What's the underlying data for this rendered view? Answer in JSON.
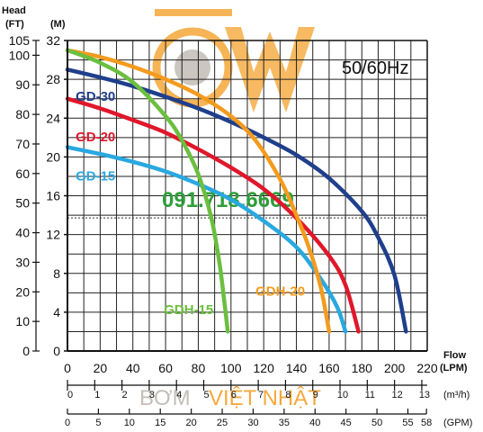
{
  "chart_data": {
    "type": "line",
    "frequency_label": "50/60Hz",
    "phone_watermark": "091.718.6669",
    "brand_watermark": [
      "BƠM",
      "VIỆT NHẬT"
    ],
    "x_axis": {
      "title_lines": [
        "Flow",
        "(LPM)"
      ],
      "unit": "LPM",
      "range": [
        0,
        220
      ],
      "ticks": [
        0,
        20,
        40,
        60,
        80,
        100,
        120,
        140,
        160,
        180,
        200,
        220
      ]
    },
    "x_axis_m3h": {
      "unit_label": "(m³/h)",
      "ticks": [
        0,
        1,
        2,
        3,
        4,
        5,
        6,
        7,
        8,
        9,
        10,
        11,
        12,
        13
      ]
    },
    "x_axis_gpm": {
      "unit_label": "(GPM)",
      "ticks": [
        0,
        5,
        10,
        15,
        20,
        25,
        30,
        35,
        40,
        45,
        50,
        55,
        58
      ]
    },
    "y_axis_m": {
      "unit_label": "(M)",
      "range": [
        0,
        32
      ],
      "ticks": [
        0,
        4,
        8,
        12,
        16,
        20,
        24,
        28,
        32
      ]
    },
    "y_axis_ft": {
      "title": "Head",
      "unit_label": "(FT)",
      "ticks": [
        0,
        10,
        20,
        30,
        40,
        50,
        60,
        70,
        80,
        90,
        100,
        105
      ]
    },
    "grid": true,
    "series": [
      {
        "name": "GD-30",
        "color": "#1f3f8c",
        "points": [
          [
            0,
            29
          ],
          [
            20,
            28.2
          ],
          [
            40,
            27.3
          ],
          [
            60,
            26.2
          ],
          [
            80,
            25
          ],
          [
            100,
            23.6
          ],
          [
            120,
            22
          ],
          [
            140,
            20.2
          ],
          [
            160,
            17.8
          ],
          [
            180,
            14.4
          ],
          [
            190,
            11.7
          ],
          [
            200,
            7.8
          ],
          [
            207,
            2
          ]
        ]
      },
      {
        "name": "GD-20",
        "color": "#e0172b",
        "points": [
          [
            0,
            26
          ],
          [
            20,
            25
          ],
          [
            40,
            23.8
          ],
          [
            60,
            22.5
          ],
          [
            80,
            20.8
          ],
          [
            100,
            18.9
          ],
          [
            120,
            16.7
          ],
          [
            140,
            13.7
          ],
          [
            160,
            9.8
          ],
          [
            170,
            6.8
          ],
          [
            178,
            2
          ]
        ]
      },
      {
        "name": "GD-15",
        "color": "#29a8e0",
        "points": [
          [
            0,
            21
          ],
          [
            20,
            20.3
          ],
          [
            40,
            19.5
          ],
          [
            60,
            18.5
          ],
          [
            80,
            17.2
          ],
          [
            100,
            15.6
          ],
          [
            120,
            13.4
          ],
          [
            140,
            10.7
          ],
          [
            155,
            7.4
          ],
          [
            165,
            4.5
          ],
          [
            170,
            2
          ]
        ]
      },
      {
        "name": "GDH-20",
        "color": "#f39b1e",
        "points": [
          [
            0,
            31
          ],
          [
            20,
            30.3
          ],
          [
            40,
            29.3
          ],
          [
            60,
            28
          ],
          [
            80,
            26.4
          ],
          [
            100,
            24.2
          ],
          [
            115,
            21.7
          ],
          [
            130,
            17.7
          ],
          [
            140,
            14
          ],
          [
            148,
            10.5
          ],
          [
            155,
            6.5
          ],
          [
            160,
            2
          ]
        ]
      },
      {
        "name": "GDH-15",
        "color": "#6bbf3f",
        "points": [
          [
            0,
            31
          ],
          [
            20,
            29.7
          ],
          [
            40,
            27.7
          ],
          [
            60,
            24.2
          ],
          [
            70,
            21.7
          ],
          [
            80,
            18.2
          ],
          [
            88,
            13.7
          ],
          [
            93,
            9
          ],
          [
            96,
            5
          ],
          [
            98,
            2
          ]
        ]
      }
    ]
  }
}
